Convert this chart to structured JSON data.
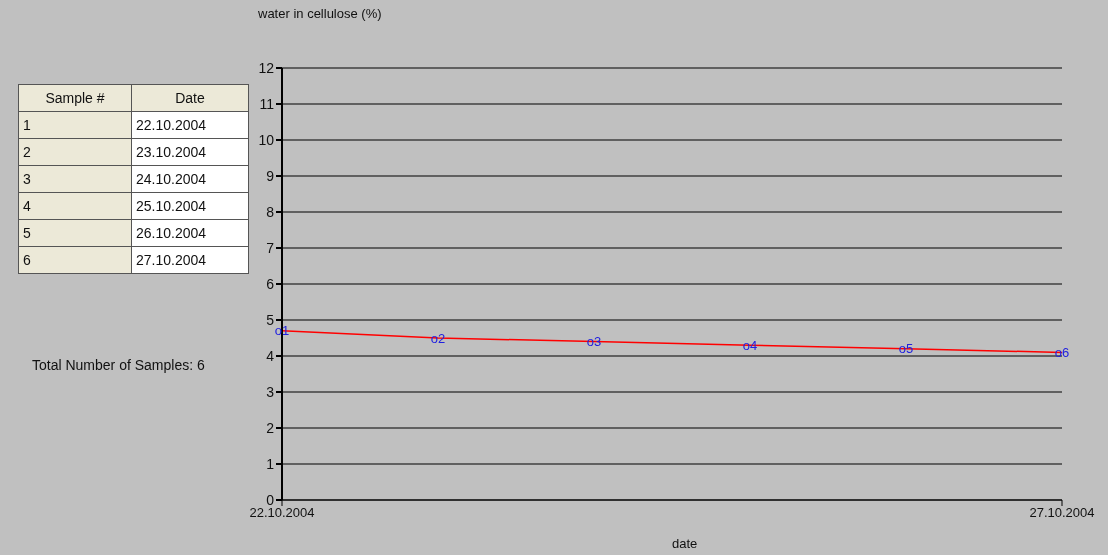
{
  "chart_data": {
    "type": "line",
    "ylabel": "water in cellulose (%)",
    "xlabel": "date",
    "x": [
      "2004-10-22",
      "2004-10-23",
      "2004-10-24",
      "2004-10-25",
      "2004-10-26",
      "2004-10-27"
    ],
    "series": [
      {
        "color": "#ff0000",
        "values": [
          4.7,
          4.5,
          4.4,
          4.3,
          4.2,
          4.1
        ],
        "value_labels": [
          "o1",
          "o2",
          "o3",
          "o4",
          "o5",
          "o6"
        ]
      }
    ],
    "xlim": [
      "2004-10-22",
      "2004-10-27"
    ],
    "xticks": [
      {
        "value": "2004-10-22",
        "label": "22.10.2004"
      },
      {
        "value": "2004-10-27",
        "label": "27.10.2004"
      }
    ],
    "ylim": [
      0,
      12
    ],
    "yticks": [
      0,
      1,
      2,
      3,
      4,
      5,
      6,
      7,
      8,
      9,
      10,
      11,
      12
    ],
    "grid": "y",
    "marker": "none",
    "line_style": "solid",
    "annotations": [
      "Sample #",
      "Date",
      "1",
      "22.10.2004",
      "2",
      "23.10.2004",
      "3",
      "24.10.2004",
      "4",
      "25.10.2004",
      "5",
      "26.10.2004",
      "6",
      "27.10.2004",
      "Total Number of Samples: 6"
    ]
  }
}
